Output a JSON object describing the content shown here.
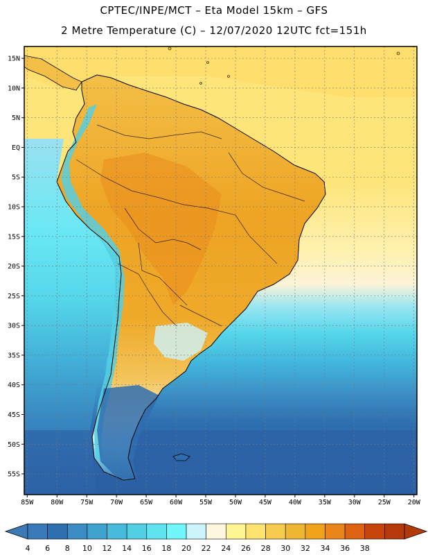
{
  "header": {
    "line1": "CPTEC/INPE/MCT –  Eta Model 15km – GFS",
    "line2": "2 Metre Temperature (C) – 12/07/2020 12UTC fct=151h"
  },
  "map": {
    "lon_range": [
      -85.5,
      -19.5
    ],
    "lat_range": [
      -58.5,
      17
    ],
    "lat_ticks": [
      {
        "value": 15,
        "label": "15N"
      },
      {
        "value": 10,
        "label": "10N"
      },
      {
        "value": 5,
        "label": "5N"
      },
      {
        "value": 0,
        "label": "EQ"
      },
      {
        "value": -5,
        "label": "5S"
      },
      {
        "value": -10,
        "label": "10S"
      },
      {
        "value": -15,
        "label": "15S"
      },
      {
        "value": -20,
        "label": "20S"
      },
      {
        "value": -25,
        "label": "25S"
      },
      {
        "value": -30,
        "label": "30S"
      },
      {
        "value": -35,
        "label": "35S"
      },
      {
        "value": -40,
        "label": "40S"
      },
      {
        "value": -45,
        "label": "45S"
      },
      {
        "value": -50,
        "label": "50S"
      },
      {
        "value": -55,
        "label": "55S"
      }
    ],
    "lon_ticks": [
      {
        "value": -85,
        "label": "85W"
      },
      {
        "value": -80,
        "label": "80W"
      },
      {
        "value": -75,
        "label": "75W"
      },
      {
        "value": -70,
        "label": "70W"
      },
      {
        "value": -65,
        "label": "65W"
      },
      {
        "value": -60,
        "label": "60W"
      },
      {
        "value": -55,
        "label": "55W"
      },
      {
        "value": -50,
        "label": "50W"
      },
      {
        "value": -45,
        "label": "45W"
      },
      {
        "value": -40,
        "label": "40W"
      },
      {
        "value": -35,
        "label": "35W"
      },
      {
        "value": -30,
        "label": "30W"
      },
      {
        "value": -25,
        "label": "25W"
      },
      {
        "value": -20,
        "label": "20W"
      }
    ]
  },
  "colorbar": {
    "values": [
      "4",
      "6",
      "8",
      "10",
      "12",
      "14",
      "16",
      "18",
      "20",
      "22",
      "24",
      "26",
      "28",
      "30",
      "32",
      "34",
      "36",
      "38"
    ],
    "colors": [
      "#3a7ab8",
      "#2f6faf",
      "#3b8cc4",
      "#3ea3cf",
      "#46bbdb",
      "#53cfe3",
      "#5fe3ee",
      "#6ff7fb",
      "#cdf4fb",
      "#fff6e0",
      "#fff593",
      "#fde26f",
      "#f6cb4e",
      "#f0b732",
      "#efa31b",
      "#ea861c",
      "#dd6212",
      "#c6440a",
      "#b5390b"
    ],
    "under_color": "#3c78b5",
    "over_color": "#b23b09"
  },
  "colors": {
    "ocean_south": "#2e63a5",
    "ocean_mid": "#3f9ccf",
    "ocean_cyan": "#55d6ea",
    "ocean_warm": "#fde574",
    "land_hot": "#f0b330",
    "land_very_hot": "#ea8c1d",
    "andes": "#4fc6d8",
    "patagonia": "#2f6db0",
    "coastline": "#000000"
  }
}
